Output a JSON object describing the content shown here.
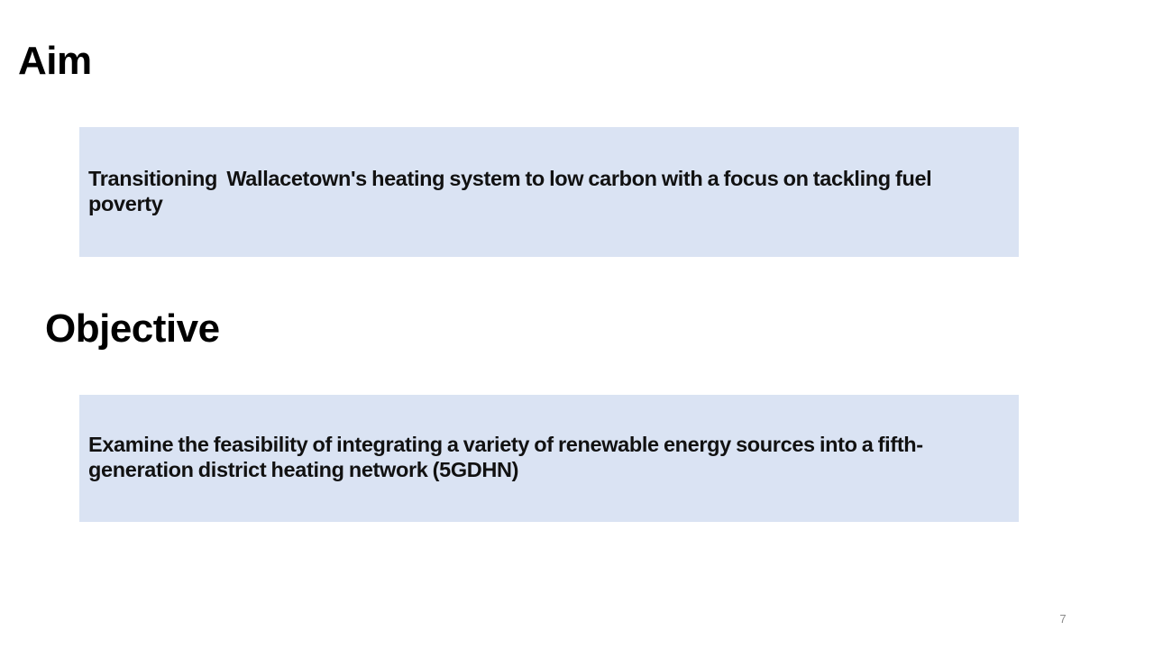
{
  "slide": {
    "aim": {
      "heading": "Aim",
      "text": "Transitioning  Wallacetown's heating system to low carbon with a focus on tackling fuel poverty",
      "box_color": "#dae3f3"
    },
    "objective": {
      "heading": "Objective",
      "text": "Examine the feasibility of integrating a variety of renewable energy sources into a fifth-generation district heating network (5GDHN)",
      "box_color": "#dae3f3"
    },
    "page_number": "7"
  }
}
